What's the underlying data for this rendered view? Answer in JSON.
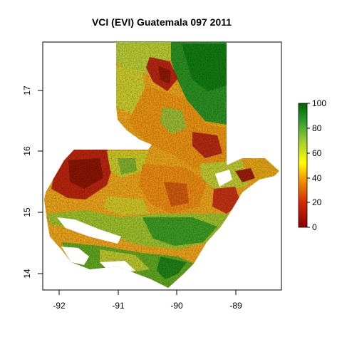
{
  "title": "VCI (EVI) Guatemala 097 2011",
  "map": {
    "x_ticks": [
      {
        "value": -92,
        "label": "-92"
      },
      {
        "value": -91,
        "label": "-91"
      },
      {
        "value": -90,
        "label": "-90"
      },
      {
        "value": -89,
        "label": "-89"
      }
    ],
    "y_ticks": [
      {
        "value": 14,
        "label": "14"
      },
      {
        "value": 15,
        "label": "15"
      },
      {
        "value": 16,
        "label": "16"
      },
      {
        "value": 17,
        "label": "17"
      }
    ],
    "xlim": [
      -92.3,
      -88.2
    ],
    "ylim": [
      13.75,
      17.82
    ]
  },
  "legend": {
    "ticks": [
      {
        "value": 0,
        "label": "0"
      },
      {
        "value": 20,
        "label": "20"
      },
      {
        "value": 40,
        "label": "40"
      },
      {
        "value": 60,
        "label": "60"
      },
      {
        "value": 80,
        "label": "80"
      },
      {
        "value": 100,
        "label": "100"
      }
    ],
    "range": [
      0,
      100
    ],
    "colors": [
      "#8b0000",
      "#cc2200",
      "#f07800",
      "#ffff00",
      "#9acd32",
      "#1a8f1a",
      "#006400"
    ]
  }
}
